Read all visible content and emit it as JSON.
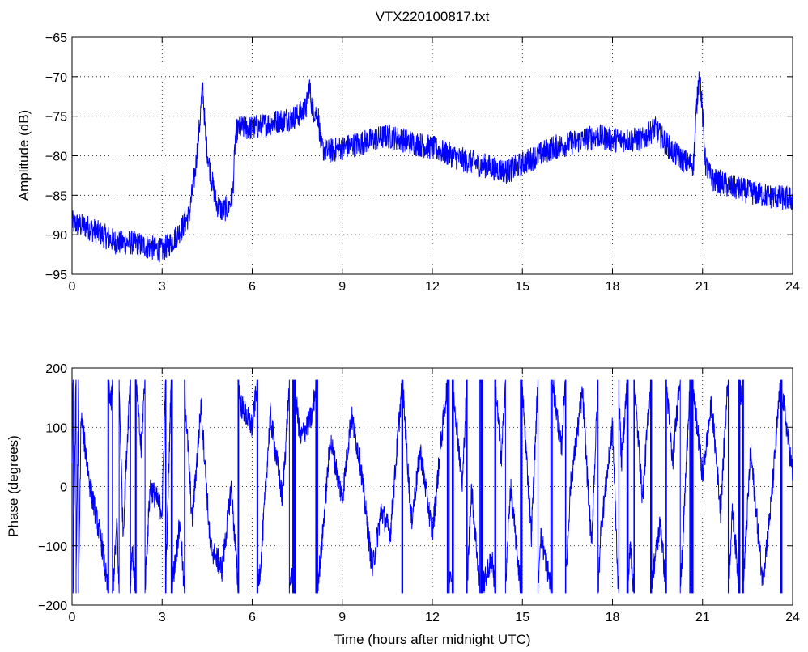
{
  "chart_data": {
    "title": "VTX220100817.txt",
    "x": {
      "label": "Time (hours after midnight UTC)",
      "range": [
        0,
        24
      ],
      "ticks": [
        0,
        3,
        6,
        9,
        12,
        15,
        18,
        21,
        24
      ]
    },
    "panels": [
      {
        "type": "line",
        "ylabel": "Amplitude (dB)",
        "ylim": [
          -95,
          -65
        ],
        "yticks": [
          -95,
          -90,
          -85,
          -80,
          -75,
          -70,
          -65
        ],
        "grid": true,
        "color": "#0000ff",
        "series": [
          {
            "noise": 1.6,
            "x": [
              0,
              0.5,
              1,
              1.5,
              2,
              2.5,
              3,
              3.3,
              3.6,
              3.9,
              4.1,
              4.25,
              4.35,
              4.45,
              4.6,
              4.8,
              5.0,
              5.2,
              5.35,
              5.45,
              5.6,
              6,
              6.5,
              7,
              7.5,
              7.8,
              7.9,
              8.0,
              8.2,
              8.3,
              8.5,
              9,
              10,
              10.5,
              11,
              12,
              13,
              14,
              14.5,
              15,
              16,
              17,
              17.5,
              18,
              19,
              19.4,
              19.7,
              20,
              20.5,
              20.7,
              20.8,
              20.9,
              21.0,
              21.1,
              21.3,
              22,
              23,
              24
            ],
            "y": [
              -88.5,
              -89,
              -90,
              -91,
              -91,
              -91.5,
              -92,
              -91,
              -89.5,
              -87.5,
              -82,
              -76,
              -71,
              -78,
              -82,
              -86,
              -87,
              -86.5,
              -85,
              -77,
              -76.5,
              -76.5,
              -76,
              -75.5,
              -75,
              -74,
              -71,
              -74,
              -75,
              -79,
              -79.5,
              -79,
              -78,
              -77.5,
              -78,
              -79,
              -80.5,
              -81.5,
              -82,
              -81,
              -79,
              -78,
              -77.5,
              -78,
              -78,
              -76.5,
              -78,
              -79.5,
              -81,
              -81,
              -74,
              -69,
              -75,
              -81,
              -83,
              -84,
              -85,
              -85.5
            ]
          }
        ]
      },
      {
        "type": "line",
        "ylabel": "Phase (degrees)",
        "ylim": [
          -200,
          200
        ],
        "yticks": [
          -200,
          -100,
          0,
          100,
          200
        ],
        "grid": true,
        "color": "#0000ff",
        "series": [
          {
            "wrap": [
              -180,
              180
            ],
            "noise": 22,
            "x": [
              0,
              0.3,
              0.6,
              1.0,
              1.3,
              1.5,
              1.7,
              2.0,
              2.3,
              2.6,
              3.0,
              3.3,
              3.6,
              4.0,
              4.3,
              4.6,
              5.0,
              5.3,
              5.6,
              6.0,
              6.3,
              6.6,
              7.0,
              7.3,
              7.6,
              8.0,
              8.3,
              8.6,
              9.0,
              9.3,
              9.6,
              10.0,
              10.3,
              10.6,
              11.0,
              11.3,
              11.6,
              12.0,
              12.3,
              12.6,
              13.0,
              13.3,
              13.6,
              14.0,
              14.3,
              14.6,
              15.0,
              15.3,
              15.6,
              16.0,
              16.3,
              16.6,
              17.0,
              17.3,
              17.6,
              18.0,
              18.3,
              18.6,
              19.0,
              19.3,
              19.6,
              20.0,
              20.3,
              20.6,
              21.0,
              21.3,
              21.6,
              22.0,
              22.3,
              22.6,
              23.0,
              23.3,
              23.6,
              24.0
            ],
            "y": [
              50,
              1200,
              1080,
              980,
              860,
              1020,
              640,
              980,
              780,
              1080,
              1040,
              1620,
              1740,
              1380,
              1580,
              1340,
              1300,
              1440,
              1220,
              1180,
              1320,
              1560,
              1420,
              1660,
              1520,
              1560,
              1690,
              1880,
              1780,
              1920,
              1840,
              1660,
              1760,
              1720,
              1980,
              1740,
              1860,
              1720,
              1880,
              2020,
              1800,
              2160,
              1980,
              2040,
              1840,
              2160,
              1960,
              1720,
              2080,
              1980,
              1860,
              2160,
              2320,
              2060,
              2440,
              2620,
              2200,
              2420,
              2140,
              2360,
              2460,
              2200,
              2380,
              2720,
              2540,
              2660,
              2480,
              2840,
              2660,
              2940,
              2720,
              2860,
              3060,
              2900
            ]
          }
        ]
      }
    ]
  }
}
